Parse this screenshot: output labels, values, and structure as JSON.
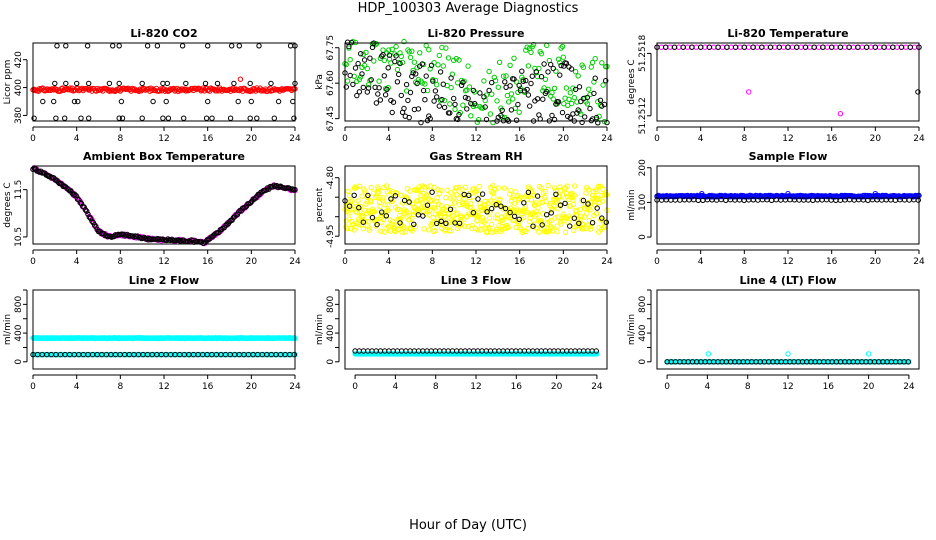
{
  "figure": {
    "title": "HDP_100303  Average Diagnostics",
    "xlabel": "Hour of Day (UTC)"
  },
  "colors": {
    "black": "#000000",
    "red": "#ff0000",
    "green": "#00cc00",
    "magenta": "#ff00ff",
    "yellow": "#ffff00",
    "blue": "#0000ff",
    "cyan": "#00ffff"
  },
  "chart_data": [
    {
      "type": "scatter",
      "title": "Li-820 CO2",
      "ylabel": "Licor ppm",
      "xlim": [
        0,
        24
      ],
      "ylim": [
        376,
        432
      ],
      "xticks": [
        0,
        4,
        8,
        12,
        16,
        20,
        24
      ],
      "xtick_labels": [
        "0",
        "4",
        "8",
        "12",
        "16",
        "20",
        "24"
      ],
      "yticks": [
        380,
        400,
        420
      ],
      "ytick_labels": [
        "380",
        "400",
        "420"
      ],
      "grid": false,
      "series": [
        {
          "color": "#ff0000",
          "kind": "band",
          "center": 398.5,
          "amplitude": 1.2,
          "spacing": 0.1
        },
        {
          "color": "#000000",
          "kind": "points",
          "x": [
            0.1,
            2.1,
            2.9,
            4.4,
            5.1,
            7.9,
            8.2,
            10.0,
            11.9,
            12.4,
            13.8,
            15.9,
            16.4,
            18.1,
            19.9,
            20.5,
            22.1,
            23.9,
            0.9,
            1.9,
            3.8,
            4.1,
            8.1,
            11.0,
            12.2,
            16.0,
            18.8,
            20.0,
            22.5,
            23.8,
            2.0,
            3.0,
            4.0,
            5.1,
            7.0,
            7.9,
            10.0,
            11.9,
            12.3,
            14.0,
            15.8,
            16.9,
            18.4,
            19.9,
            21.8,
            24.0
          ],
          "y": [
            378,
            378,
            378,
            378,
            378,
            378,
            378,
            378,
            378,
            378,
            378,
            378,
            378,
            378,
            378,
            378,
            378,
            378,
            390,
            390,
            390,
            390,
            390,
            390,
            390,
            390,
            390,
            390,
            390,
            390,
            403,
            403,
            403,
            403,
            403,
            403,
            403,
            403,
            403,
            403,
            403,
            403,
            403,
            403,
            403,
            403
          ]
        },
        {
          "color": "#000000",
          "kind": "points",
          "x": [
            2.2,
            3.0,
            5.0,
            7.3,
            7.9,
            10.5,
            11.4,
            13.7,
            16.0,
            18.2,
            18.9,
            20.7,
            23.6,
            24.0
          ],
          "y": [
            430,
            430,
            430,
            430,
            430,
            430,
            430,
            430,
            430,
            430,
            430,
            430,
            430,
            430
          ]
        },
        {
          "color": "#ff0000",
          "kind": "points",
          "x": [
            19.0
          ],
          "y": [
            406
          ]
        }
      ]
    },
    {
      "type": "scatter",
      "title": "Li-820 Pressure",
      "ylabel": "kPa",
      "xlim": [
        0,
        24
      ],
      "ylim": [
        67.44,
        67.77
      ],
      "xticks": [
        0,
        4,
        8,
        12,
        16,
        20,
        24
      ],
      "xtick_labels": [
        "0",
        "4",
        "8",
        "12",
        "16",
        "20",
        "24"
      ],
      "yticks": [
        67.45,
        67.6,
        67.75
      ],
      "ytick_labels": [
        "67.45",
        "67.60",
        "67.75"
      ],
      "grid": false,
      "series": [
        {
          "color": "#00cc00",
          "kind": "curve",
          "x": [
            0,
            2,
            4,
            6,
            8,
            10,
            12,
            13,
            14,
            16,
            18,
            20,
            22,
            24
          ],
          "y": [
            67.74,
            67.72,
            67.69,
            67.66,
            67.65,
            67.6,
            67.55,
            67.53,
            67.56,
            67.61,
            67.64,
            67.62,
            67.57,
            67.57
          ]
        },
        {
          "color": "#000000",
          "kind": "curve",
          "x": [
            0,
            2,
            4,
            6,
            8,
            10,
            12,
            13,
            14,
            16,
            18,
            20,
            22,
            24
          ],
          "y": [
            67.69,
            67.66,
            67.61,
            67.58,
            67.55,
            67.5,
            67.46,
            67.47,
            67.49,
            67.52,
            67.56,
            67.57,
            67.52,
            67.5
          ]
        },
        {
          "color": "#00cc00",
          "kind": "points",
          "x": [
            4.0,
            20.0
          ],
          "y": [
            67.74,
            67.71
          ]
        }
      ]
    },
    {
      "type": "scatter",
      "title": "Li-820 Temperature",
      "ylabel": "degrees C",
      "xlim": [
        0,
        24
      ],
      "ylim": [
        51.25115,
        51.2519
      ],
      "xticks": [
        0,
        4,
        8,
        12,
        16,
        20,
        24
      ],
      "xtick_labels": [
        "0",
        "4",
        "8",
        "12",
        "16",
        "20",
        "24"
      ],
      "yticks": [
        51.2512,
        51.2518
      ],
      "ytick_labels": [
        "51.2512",
        "51.2518"
      ],
      "grid": false,
      "series": [
        {
          "color": "#ff00ff",
          "kind": "band",
          "center": 51.25186,
          "amplitude": 0,
          "spacing": 0.4
        },
        {
          "color": "#000000",
          "kind": "band",
          "center": 51.25186,
          "amplitude": 0,
          "spacing": 0.8
        },
        {
          "color": "#ff00ff",
          "kind": "points",
          "x": [
            8.4,
            16.8
          ],
          "y": [
            51.25143,
            51.25122
          ]
        },
        {
          "color": "#000000",
          "kind": "points",
          "x": [
            23.9
          ],
          "y": [
            51.25143
          ]
        }
      ]
    },
    {
      "type": "scatter",
      "title": "Ambient Box Temperature",
      "ylabel": "degrees C",
      "xlim": [
        0,
        24
      ],
      "ylim": [
        10.35,
        12.0
      ],
      "xticks": [
        0,
        4,
        8,
        12,
        16,
        20,
        24
      ],
      "xtick_labels": [
        "0",
        "4",
        "8",
        "12",
        "16",
        "20",
        "24"
      ],
      "yticks": [
        10.5,
        11.5
      ],
      "ytick_labels": [
        "10.5",
        "11.5"
      ],
      "grid": false,
      "series": [
        {
          "color": "#ff00ff",
          "kind": "curve",
          "x": [
            0,
            1,
            2,
            3,
            4,
            5,
            6,
            7,
            8,
            9,
            10,
            11,
            12,
            13,
            14,
            15,
            15.7,
            17,
            18,
            19,
            20,
            21,
            22,
            23,
            24
          ],
          "y": [
            11.95,
            11.85,
            11.72,
            11.55,
            11.35,
            11.0,
            10.62,
            10.5,
            10.55,
            10.52,
            10.48,
            10.45,
            10.44,
            10.43,
            10.42,
            10.41,
            10.38,
            10.6,
            10.82,
            11.05,
            11.25,
            11.45,
            11.58,
            11.55,
            11.48
          ]
        },
        {
          "color": "#000000",
          "kind": "curve",
          "x": [
            0,
            1,
            2,
            3,
            4,
            5,
            6,
            7,
            8,
            9,
            10,
            11,
            12,
            13,
            14,
            15,
            15.7,
            17,
            18,
            19,
            20,
            21,
            22,
            23,
            24
          ],
          "y": [
            11.95,
            11.85,
            11.72,
            11.55,
            11.35,
            11.0,
            10.62,
            10.5,
            10.55,
            10.52,
            10.48,
            10.45,
            10.44,
            10.43,
            10.42,
            10.41,
            10.38,
            10.6,
            10.82,
            11.05,
            11.25,
            11.45,
            11.58,
            11.55,
            11.48
          ]
        }
      ]
    },
    {
      "type": "scatter",
      "title": "Gas Stream RH",
      "ylabel": "percent",
      "xlim": [
        0,
        24
      ],
      "ylim": [
        -4.97,
        -4.77
      ],
      "xticks": [
        0,
        4,
        8,
        12,
        16,
        20,
        24
      ],
      "xtick_labels": [
        "0",
        "4",
        "8",
        "12",
        "16",
        "20",
        "24"
      ],
      "yticks": [
        -4.95,
        -4.9,
        -4.85,
        -4.8
      ],
      "ytick_labels": [
        "-4.95",
        "",
        "",
        "-4.80"
      ],
      "grid": false,
      "series": [
        {
          "color": "#ffff00",
          "kind": "noise",
          "center": -4.88,
          "amplitude": 0.06,
          "spacing": 0.04,
          "seed": 7
        },
        {
          "color": "#000000",
          "kind": "noise",
          "center": -4.88,
          "amplitude": 0.045,
          "spacing": 0.42,
          "seed": 13
        }
      ]
    },
    {
      "type": "scatter",
      "title": "Sample Flow",
      "ylabel": "ml/min",
      "xlim": [
        0,
        24
      ],
      "ylim": [
        -20,
        205
      ],
      "xticks": [
        0,
        4,
        8,
        12,
        16,
        20,
        24
      ],
      "xtick_labels": [
        "0",
        "4",
        "8",
        "12",
        "16",
        "20",
        "24"
      ],
      "yticks": [
        0,
        100,
        200
      ],
      "ytick_labels": [
        "0",
        "100",
        "200"
      ],
      "grid": false,
      "series": [
        {
          "color": "#0000ff",
          "kind": "band",
          "center": 118,
          "amplitude": 2,
          "spacing": 0.08
        },
        {
          "color": "#000000",
          "kind": "band",
          "center": 107,
          "amplitude": 1,
          "spacing": 0.42
        },
        {
          "color": "#0000ff",
          "kind": "points",
          "x": [
            4.1,
            12.0,
            20.0
          ],
          "y": [
            125,
            125,
            125
          ]
        }
      ]
    },
    {
      "type": "scatter",
      "title": "Line 2 Flow",
      "ylabel": "ml/min",
      "xlim": [
        0,
        24
      ],
      "ylim": [
        -100,
        1000
      ],
      "xticks": [
        0,
        4,
        8,
        12,
        16,
        20,
        24
      ],
      "xtick_labels": [
        "0",
        "4",
        "8",
        "12",
        "16",
        "20",
        "24"
      ],
      "yticks": [
        0,
        200,
        400,
        600,
        800,
        1000
      ],
      "ytick_labels": [
        "0",
        "",
        "400",
        "",
        "800",
        ""
      ],
      "grid": false,
      "series": [
        {
          "color": "#00ffff",
          "kind": "band",
          "center": 330,
          "amplitude": 5,
          "spacing": 0.06
        },
        {
          "color": "#00ffff",
          "kind": "band",
          "center": 100,
          "amplitude": 0,
          "spacing": 0.12
        },
        {
          "color": "#000000",
          "kind": "band",
          "center": 100,
          "amplitude": 0,
          "spacing": 0.42
        }
      ]
    },
    {
      "type": "scatter",
      "title": "Line 3 Flow",
      "ylabel": "ml/min",
      "xlim": [
        -1,
        25
      ],
      "ylim": [
        -100,
        1000
      ],
      "xticks": [
        0,
        4,
        8,
        12,
        16,
        20,
        24
      ],
      "xtick_labels": [
        "0",
        "4",
        "8",
        "12",
        "16",
        "20",
        "24"
      ],
      "yticks": [
        0,
        200,
        400,
        600,
        800,
        1000
      ],
      "ytick_labels": [
        "0",
        "",
        "400",
        "",
        "800",
        ""
      ],
      "grid": false,
      "series": [
        {
          "color": "#00ffff",
          "kind": "band",
          "center": 110,
          "amplitude": 0,
          "spacing": 0.1
        },
        {
          "color": "#000000",
          "kind": "band",
          "center": 150,
          "amplitude": 0,
          "spacing": 0.42
        }
      ]
    },
    {
      "type": "scatter",
      "title": "Line 4 (LT) Flow",
      "ylabel": "ml/min",
      "xlim": [
        -1,
        25
      ],
      "ylim": [
        -100,
        1000
      ],
      "xticks": [
        0,
        4,
        8,
        12,
        16,
        20,
        24
      ],
      "xtick_labels": [
        "0",
        "4",
        "8",
        "12",
        "16",
        "20",
        "24"
      ],
      "yticks": [
        0,
        200,
        400,
        600,
        800,
        1000
      ],
      "ytick_labels": [
        "0",
        "",
        "400",
        "",
        "800",
        ""
      ],
      "grid": false,
      "series": [
        {
          "color": "#00ffff",
          "kind": "band",
          "center": 0,
          "amplitude": 0,
          "spacing": 0.1
        },
        {
          "color": "#000000",
          "kind": "band",
          "center": 0,
          "amplitude": 0,
          "spacing": 0.42
        },
        {
          "color": "#00ffff",
          "kind": "points",
          "x": [
            4.1,
            12.0,
            20.0
          ],
          "y": [
            110,
            110,
            110
          ]
        }
      ]
    }
  ]
}
